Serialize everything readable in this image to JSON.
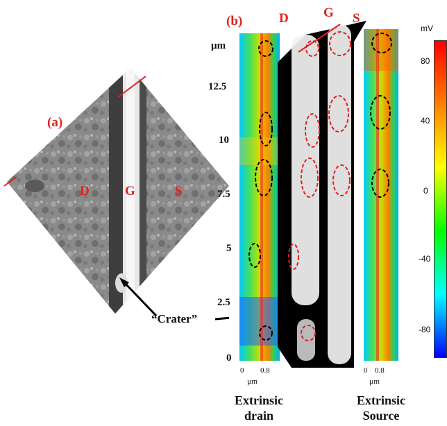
{
  "panel_a": {
    "label": "(a)",
    "region_labels": [
      "D",
      "G",
      "S"
    ],
    "annotation": "“Crater”"
  },
  "panel_b": {
    "label": "(b)",
    "region_labels": [
      "D",
      "G",
      "S"
    ],
    "y_axis_unit": "µm",
    "y_ticks": [
      "12.5",
      "10",
      "7.5",
      "5",
      "2.5",
      "0"
    ],
    "x_ticks": [
      "0",
      "0.8"
    ],
    "x_unit": "µm",
    "bottom_labels": {
      "drain_line1": "Extrinsic",
      "drain_line2": "drain",
      "source_line1": "Extrinsic",
      "source_line2": "Source"
    }
  },
  "colorbar": {
    "unit": "mV",
    "ticks": [
      "80",
      "40",
      "0",
      "-40",
      "-80"
    ],
    "colors": [
      "#ff0000",
      "#ff8000",
      "#ffff00",
      "#00ff00",
      "#00ffff",
      "#0000ff"
    ]
  }
}
